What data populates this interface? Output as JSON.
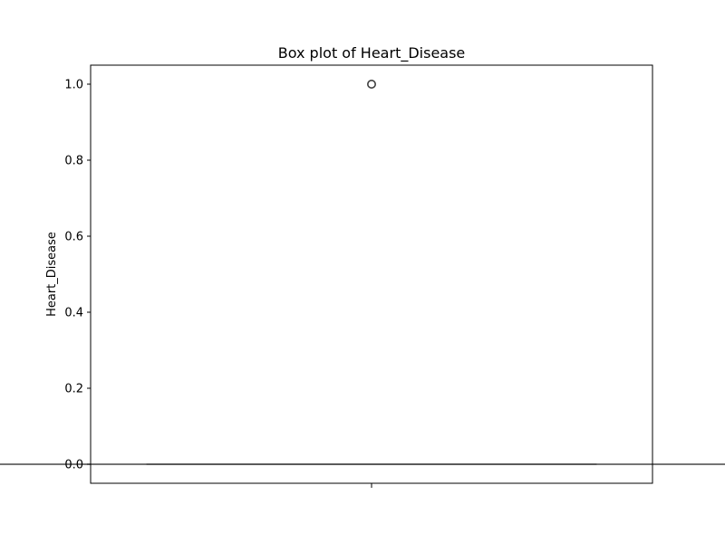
{
  "chart_data": {
    "type": "box",
    "title": "Box plot of Heart_Disease",
    "xlabel": "",
    "ylabel": "Heart_Disease",
    "categories": [
      ""
    ],
    "ylim": [
      -0.05,
      1.05
    ],
    "y_ticks": [
      0.0,
      0.2,
      0.4,
      0.6,
      0.8,
      1.0
    ],
    "y_tick_labels": [
      "0.0",
      "0.2",
      "0.4",
      "0.6",
      "0.8",
      "1.0"
    ],
    "grid": false,
    "boxes": [
      {
        "category": "",
        "min": 0.0,
        "q1": 0.0,
        "median": 0.0,
        "q3": 0.0,
        "max": 0.0,
        "outliers": [
          1.0
        ]
      }
    ],
    "colors": {
      "box_line": "#3f3f3f",
      "axis": "#000000"
    }
  }
}
